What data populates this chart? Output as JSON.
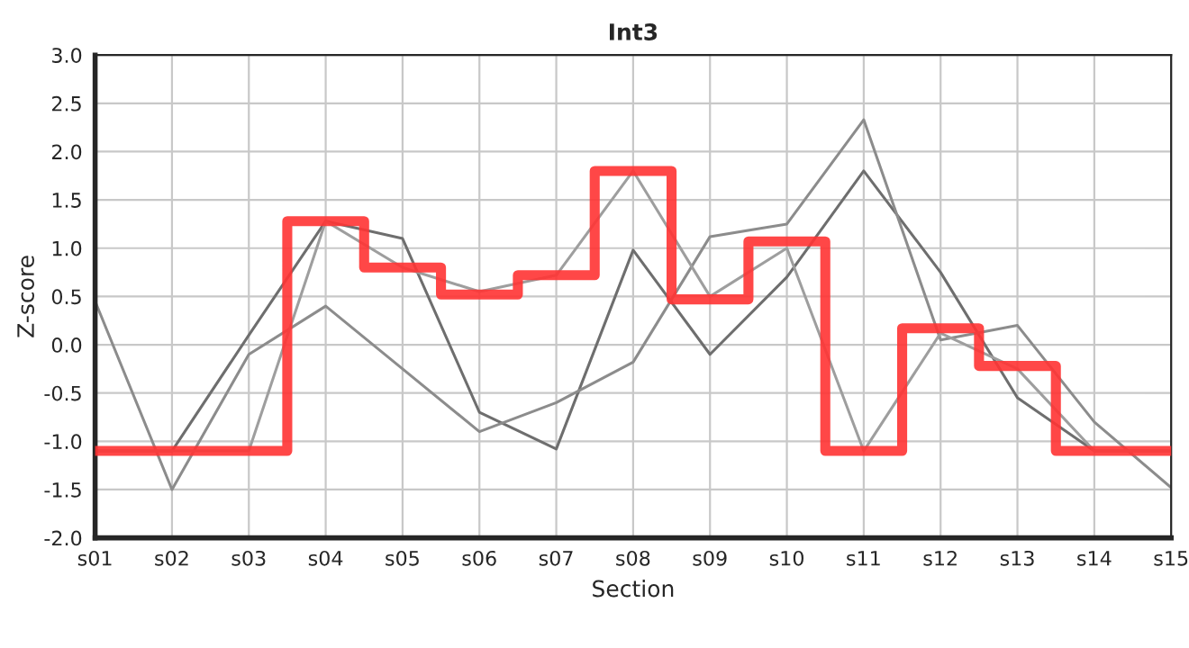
{
  "chart_data": {
    "type": "line",
    "title": "Int3",
    "xlabel": "Section",
    "ylabel": "Z-score",
    "categories": [
      "s01",
      "s02",
      "s03",
      "s04",
      "s05",
      "s06",
      "s07",
      "s08",
      "s09",
      "s10",
      "s11",
      "s12",
      "s13",
      "s14",
      "s15"
    ],
    "series": [
      {
        "color": "#6e6e6e",
        "values": [
          -1.1,
          -1.1,
          0.1,
          1.28,
          1.1,
          -0.7,
          -1.08,
          0.98,
          -0.1,
          0.7,
          1.8,
          0.75,
          -0.55,
          -1.1,
          -1.1
        ]
      },
      {
        "color": "#8c8c8c",
        "values": [
          0.45,
          -1.5,
          -0.1,
          0.4,
          -0.25,
          -0.9,
          -0.6,
          -0.18,
          1.12,
          1.25,
          2.33,
          0.05,
          0.2,
          -0.8,
          -1.48
        ]
      },
      {
        "color": "#9e9e9e",
        "values": [
          -1.1,
          -1.1,
          -1.1,
          1.28,
          0.8,
          0.55,
          0.72,
          1.8,
          0.5,
          1.0,
          -1.1,
          0.12,
          -0.25,
          -1.1,
          -1.1
        ]
      },
      {
        "type": "step",
        "color": "#ff3333",
        "values": [
          -1.1,
          -1.1,
          -1.1,
          1.28,
          0.8,
          0.52,
          0.72,
          1.8,
          0.47,
          1.07,
          -1.1,
          0.17,
          -0.22,
          -1.1,
          -1.1
        ]
      }
    ],
    "ylim": [
      -2.0,
      3.0
    ],
    "yticks": [
      {
        "value": -2.0,
        "label": "-2.0"
      },
      {
        "value": -1.5,
        "label": "-1.5"
      },
      {
        "value": -1.0,
        "label": "-1.0"
      },
      {
        "value": -0.5,
        "label": "-0.5"
      },
      {
        "value": 0.0,
        "label": "0.0"
      },
      {
        "value": 0.5,
        "label": "0.5"
      },
      {
        "value": 1.0,
        "label": "1.0"
      },
      {
        "value": 1.5,
        "label": "1.5"
      },
      {
        "value": 2.0,
        "label": "2.0"
      },
      {
        "value": 2.5,
        "label": "2.5"
      },
      {
        "value": 3.0,
        "label": "3.0"
      }
    ],
    "grid": true,
    "legend": false
  }
}
